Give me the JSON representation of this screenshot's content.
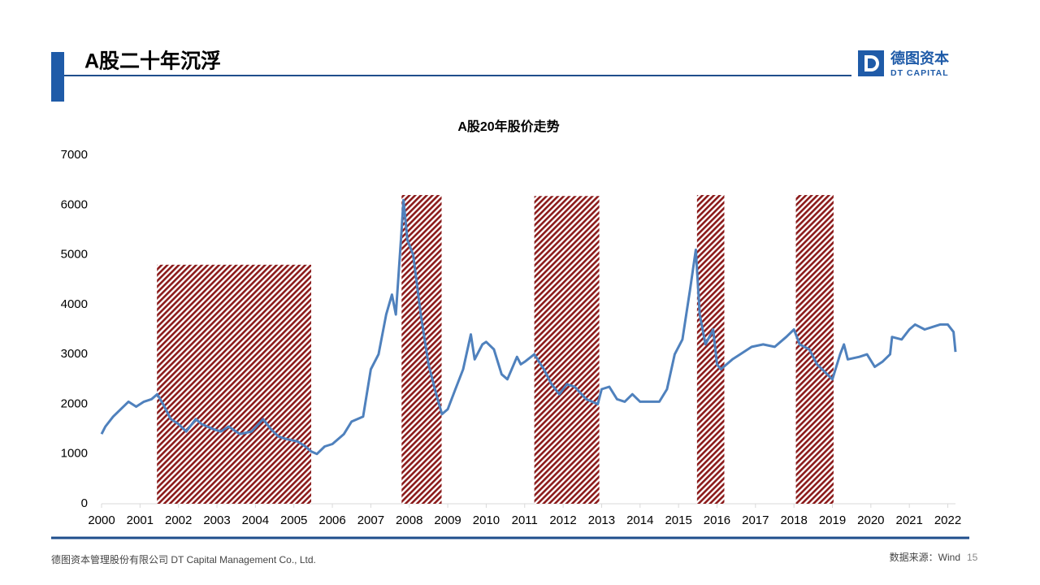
{
  "header": {
    "title": "A股二十年沉浮",
    "logo_cn": "德图资本",
    "logo_en": "DT CAPITAL"
  },
  "footer": {
    "company": "德图资本管理股份有限公司  DT Capital Management  Co., Ltd.",
    "source": "数据来源：Wind",
    "page": "15"
  },
  "chart_data": {
    "type": "line",
    "title": "A股20年股价走势",
    "color": "#4f81bd",
    "region_color": "#8b1a1a",
    "x": [
      2000.0,
      2000.1,
      2000.3,
      2000.5,
      2000.7,
      2000.9,
      2001.1,
      2001.3,
      2001.45,
      2001.6,
      2001.8,
      2002.0,
      2002.2,
      2002.45,
      2002.6,
      2002.9,
      2003.1,
      2003.3,
      2003.6,
      2003.9,
      2004.2,
      2004.4,
      2004.6,
      2004.8,
      2005.1,
      2005.3,
      2005.45,
      2005.6,
      2005.8,
      2006.0,
      2006.3,
      2006.5,
      2006.8,
      2007.0,
      2007.2,
      2007.4,
      2007.55,
      2007.65,
      2007.8,
      2007.85,
      2007.95,
      2008.1,
      2008.3,
      2008.5,
      2008.7,
      2008.85,
      2009.0,
      2009.2,
      2009.4,
      2009.6,
      2009.7,
      2009.9,
      2010.0,
      2010.2,
      2010.4,
      2010.55,
      2010.8,
      2010.9,
      2011.0,
      2011.25,
      2011.5,
      2011.7,
      2011.9,
      2012.1,
      2012.3,
      2012.6,
      2012.9,
      2013.0,
      2013.2,
      2013.4,
      2013.6,
      2013.8,
      2014.0,
      2014.3,
      2014.5,
      2014.7,
      2014.9,
      2015.1,
      2015.3,
      2015.45,
      2015.55,
      2015.7,
      2015.9,
      2016.0,
      2016.1,
      2016.4,
      2016.6,
      2016.9,
      2017.2,
      2017.5,
      2017.8,
      2018.0,
      2018.15,
      2018.4,
      2018.6,
      2018.8,
      2019.0,
      2019.2,
      2019.3,
      2019.4,
      2019.7,
      2019.9,
      2020.1,
      2020.3,
      2020.5,
      2020.55,
      2020.8,
      2021.0,
      2021.15,
      2021.4,
      2021.6,
      2021.8,
      2022.0,
      2022.15,
      2022.2
    ],
    "values": [
      1400,
      1550,
      1750,
      1900,
      2050,
      1950,
      2050,
      2100,
      2200,
      2000,
      1700,
      1600,
      1450,
      1700,
      1600,
      1500,
      1450,
      1550,
      1400,
      1450,
      1700,
      1500,
      1350,
      1300,
      1250,
      1150,
      1050,
      1000,
      1150,
      1200,
      1400,
      1650,
      1750,
      2700,
      3000,
      3800,
      4200,
      3800,
      5500,
      6100,
      5300,
      5000,
      3800,
      2800,
      2200,
      1800,
      1900,
      2300,
      2700,
      3400,
      2900,
      3200,
      3250,
      3100,
      2600,
      2500,
      2950,
      2800,
      2850,
      3000,
      2700,
      2400,
      2200,
      2400,
      2350,
      2100,
      2000,
      2300,
      2350,
      2100,
      2050,
      2200,
      2050,
      2050,
      2050,
      2300,
      3000,
      3300,
      4300,
      5100,
      3800,
      3200,
      3500,
      2800,
      2700,
      2900,
      3000,
      3150,
      3200,
      3150,
      3350,
      3500,
      3200,
      3100,
      2800,
      2650,
      2500,
      3000,
      3200,
      2900,
      2950,
      3000,
      2750,
      2850,
      3000,
      3350,
      3300,
      3500,
      3600,
      3500,
      3550,
      3600,
      3600,
      3450,
      3050
    ],
    "regions": [
      {
        "x": [
          2001.44,
          2005.45
        ],
        "top": 4800
      },
      {
        "x": [
          2007.8,
          2008.84
        ],
        "top": 6200
      },
      {
        "x": [
          2011.25,
          2012.94
        ],
        "top": 6180
      },
      {
        "x": [
          2015.48,
          2016.19
        ],
        "top": 6200
      },
      {
        "x": [
          2018.05,
          2019.03
        ],
        "top": 6200
      }
    ],
    "xlim": [
      2000,
      2022.2
    ],
    "xticks": [
      2000,
      2001,
      2002,
      2003,
      2004,
      2005,
      2006,
      2007,
      2008,
      2009,
      2010,
      2011,
      2012,
      2013,
      2014,
      2015,
      2016,
      2017,
      2018,
      2019,
      2020,
      2021,
      2022
    ],
    "ylim": [
      0,
      7000
    ],
    "yticks": [
      0,
      1000,
      2000,
      3000,
      4000,
      5000,
      6000,
      7000
    ],
    "grid": false
  }
}
